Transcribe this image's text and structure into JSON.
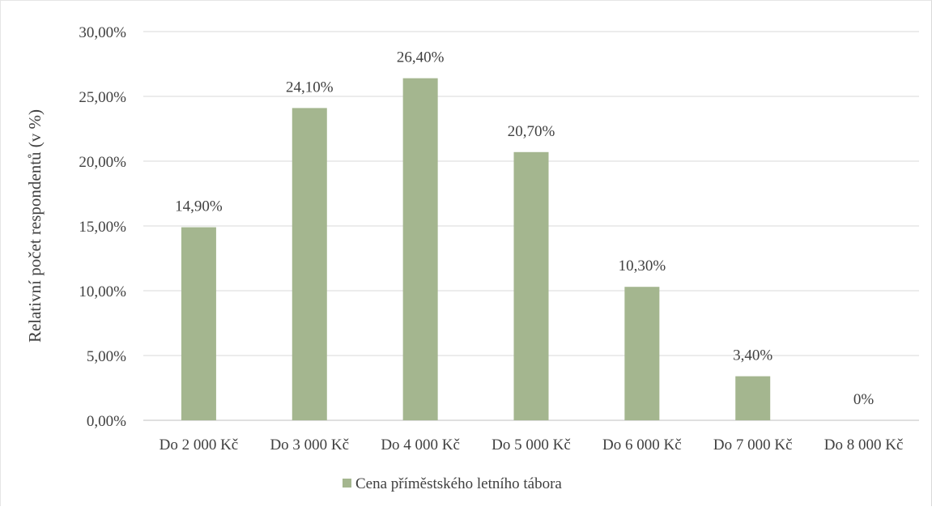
{
  "chart_data": {
    "type": "bar",
    "categories": [
      "Do 2 000 Kč",
      "Do 3 000 Kč",
      "Do 4 000 Kč",
      "Do 5 000 Kč",
      "Do 6 000 Kč",
      "Do 7 000 Kč",
      "Do 8 000 Kč"
    ],
    "series": [
      {
        "name": "Cena příměstského letního tábora",
        "values": [
          14.9,
          24.1,
          26.4,
          20.7,
          10.3,
          3.4,
          0
        ],
        "data_labels": [
          "14,90%",
          "24,10%",
          "26,40%",
          "20,70%",
          "10,30%",
          "3,40%",
          "0%"
        ],
        "color": "#a4b68f"
      }
    ],
    "title": "",
    "xlabel": "",
    "ylabel": "Relativní počet respondentů (v %)",
    "ylim": [
      0,
      30
    ],
    "yticks": [
      0,
      5,
      10,
      15,
      20,
      25,
      30
    ],
    "ytick_labels": [
      "0,00%",
      "5,00%",
      "10,00%",
      "15,00%",
      "20,00%",
      "25,00%",
      "30,00%"
    ],
    "grid": "horizontal",
    "legend_placement": "bottom"
  }
}
